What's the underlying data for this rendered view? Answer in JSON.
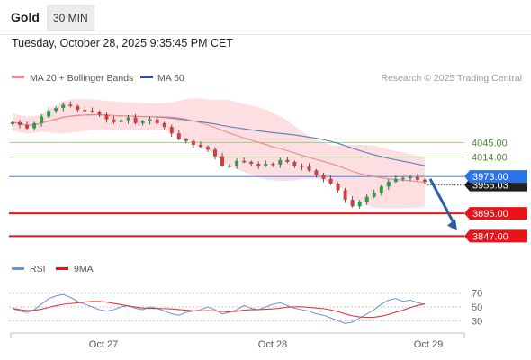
{
  "header": {
    "instrument": "Gold",
    "timeframe": "30 MIN",
    "datetime": "Tuesday, October 28, 2025 9:35:45 PM CET"
  },
  "legend": {
    "ma20_label": "MA 20 + Bollinger Bands",
    "ma50_label": "MA 50",
    "credit": "Research © 2025 Trading Central",
    "rsi_label": "RSI",
    "rsi_ma_label": "9MA"
  },
  "colors": {
    "bull": "#2e9e45",
    "bear": "#d83b3b",
    "ma20": "#f28a8a",
    "ma50": "#5b7bc0",
    "band": "#fdd9dc",
    "resistance": "#9fd08a",
    "support": "#e8141a",
    "pivot": "#5a8ae0",
    "current_bg": "#1f1f1f",
    "pivot_bg": "#2a73e8",
    "arrow": "#2a5fa8",
    "rsi": "#6a8fe0",
    "rsi_ma": "#e03a3a"
  },
  "chart_data": {
    "type": "candlestick",
    "x_labels": [
      "Oct 27",
      "Oct 28",
      "Oct 29"
    ],
    "ylim": [
      3800,
      4160
    ],
    "closes": [
      4088,
      4082,
      4075,
      4086,
      4100,
      4112,
      4118,
      4125,
      4122,
      4114,
      4112,
      4110,
      4104,
      4094,
      4088,
      4092,
      4098,
      4086,
      4090,
      4094,
      4086,
      4078,
      4064,
      4052,
      4048,
      4040,
      4036,
      4030,
      4016,
      3996,
      3996,
      4006,
      4004,
      4000,
      3996,
      4000,
      3998,
      4008,
      4004,
      3996,
      3994,
      3986,
      3976,
      3968,
      3958,
      3944,
      3924,
      3910,
      3920,
      3930,
      3938,
      3952,
      3962,
      3968,
      3970,
      3972,
      3966,
      3962
    ],
    "levels": [
      {
        "price": 4045.0,
        "label": "4045.00",
        "kind": "resistance"
      },
      {
        "price": 4014.0,
        "label": "4014.00",
        "kind": "resistance"
      },
      {
        "price": 3973.0,
        "label": "3973.00",
        "kind": "pivot"
      },
      {
        "price": 3895.0,
        "label": "3895.00",
        "kind": "support"
      },
      {
        "price": 3847.0,
        "label": "3847.00",
        "kind": "support"
      }
    ],
    "current_price": {
      "price": 3955.03,
      "label": "3955.03"
    },
    "rsi": {
      "ticks": [
        70,
        50,
        30
      ],
      "ylim": [
        20,
        80
      ],
      "values": [
        48,
        44,
        42,
        46,
        54,
        62,
        66,
        68,
        64,
        58,
        54,
        50,
        46,
        44,
        46,
        50,
        52,
        48,
        46,
        50,
        48,
        44,
        40,
        38,
        42,
        44,
        46,
        50,
        46,
        40,
        42,
        46,
        52,
        48,
        46,
        50,
        54,
        56,
        52,
        48,
        46,
        44,
        40,
        38,
        34,
        30,
        26,
        28,
        34,
        40,
        46,
        54,
        60,
        62,
        58,
        60,
        56,
        54
      ]
    }
  }
}
